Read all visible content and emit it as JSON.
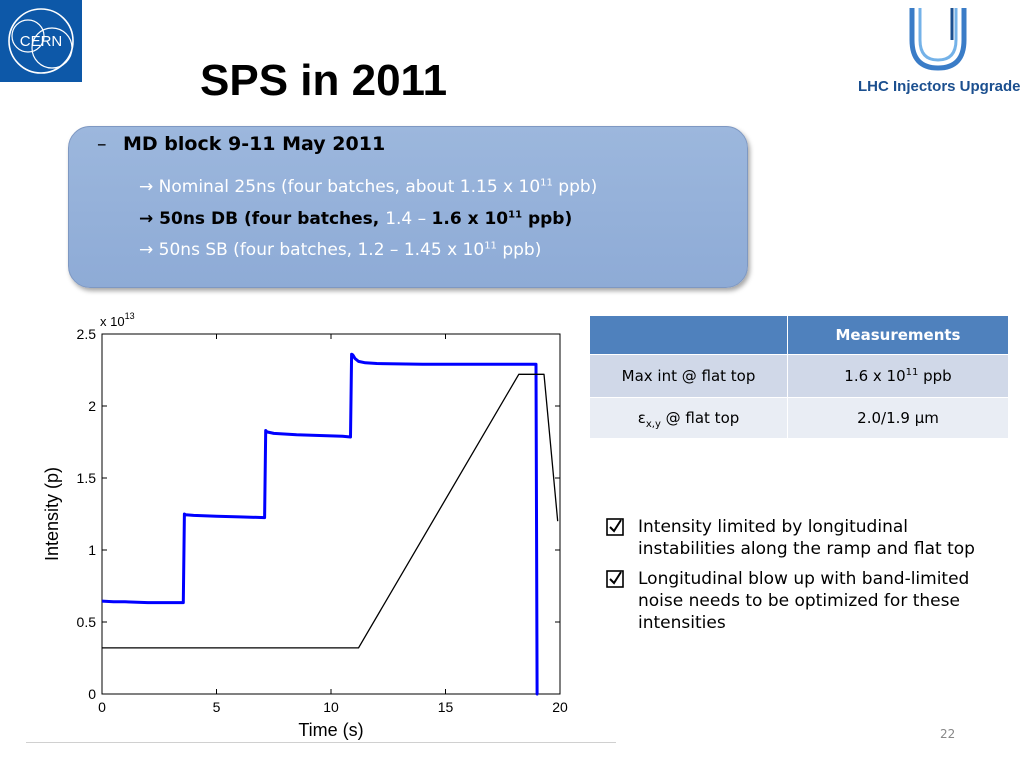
{
  "logos": {
    "cern_text": "CERN",
    "lhc_text": "LHC Injectors Upgrade"
  },
  "title": "SPS in 2011",
  "box": {
    "heading_dash": "–",
    "heading": "MD block 9-11 May 2011",
    "line1": {
      "arrow": "→",
      "text": "Nominal 25ns  (four batches, about 1.15 x 10",
      "sup": "11",
      "tail": " ppb)"
    },
    "line2": {
      "arrow": "→",
      "text": "50ns DB (four batches, ",
      "mid": "1.4",
      "dash": " – ",
      "val": "1.6 x 10",
      "sup": "11",
      "tail": " ppb)"
    },
    "line3": {
      "arrow": "→",
      "text": "50ns SB (four batches, 1.2 – 1.45 x 10",
      "sup": "11",
      "tail": " ppb)"
    }
  },
  "chart_data": {
    "type": "line",
    "xlabel": "Time (s)",
    "ylabel": "Intensity (p)",
    "y_multiplier": "x 10",
    "y_multiplier_exp": "13",
    "xlim": [
      0,
      20
    ],
    "ylim": [
      0,
      2.5
    ],
    "xticks": [
      "0",
      "5",
      "10",
      "15",
      "20"
    ],
    "yticks": [
      "0",
      "0.5",
      "1",
      "1.5",
      "2",
      "2.5"
    ],
    "series": [
      {
        "color": "#0000ff",
        "x": [
          0,
          0.5,
          1,
          2,
          3,
          3.55,
          3.6,
          3.65,
          4,
          5,
          6,
          7.1,
          7.15,
          7.2,
          7.5,
          8.5,
          9.5,
          10.5,
          10.85,
          10.9,
          10.95,
          11.05,
          11.2,
          11.5,
          12,
          14,
          16,
          18,
          18.95,
          19.0,
          19.05
        ],
        "y": [
          0.645,
          0.64,
          0.64,
          0.635,
          0.635,
          0.635,
          1.25,
          1.245,
          1.24,
          1.235,
          1.23,
          1.225,
          1.83,
          1.82,
          1.81,
          1.8,
          1.795,
          1.79,
          1.785,
          2.36,
          2.355,
          2.33,
          2.31,
          2.3,
          2.295,
          2.29,
          2.29,
          2.29,
          2.29,
          0.0,
          0.0
        ]
      },
      {
        "color": "#000000",
        "x": [
          0,
          11.2,
          18.2,
          19.3,
          19.9
        ],
        "y": [
          0.32,
          0.32,
          2.22,
          2.22,
          1.2
        ]
      }
    ]
  },
  "table": {
    "header": [
      "",
      "Measurements"
    ],
    "rows": [
      {
        "label": "Max int @ flat top",
        "value": "1.6 x 10",
        "value_sup": "11",
        "value_tail": " ppb"
      },
      {
        "label_sym": "ε",
        "label_sub": "x,y",
        "label_tail": " @ flat top",
        "value": "2.0/1.9 μm"
      }
    ]
  },
  "bullets": [
    "Intensity limited by longitudinal instabilities along the ramp and flat top",
    "Longitudinal blow up with band-limited noise needs to be optimized for these intensities"
  ],
  "page_number": "22",
  "colors": {
    "accent": "#4f81bd",
    "box_fill": "#95b1d9",
    "cern_blue": "#0d58a8"
  }
}
